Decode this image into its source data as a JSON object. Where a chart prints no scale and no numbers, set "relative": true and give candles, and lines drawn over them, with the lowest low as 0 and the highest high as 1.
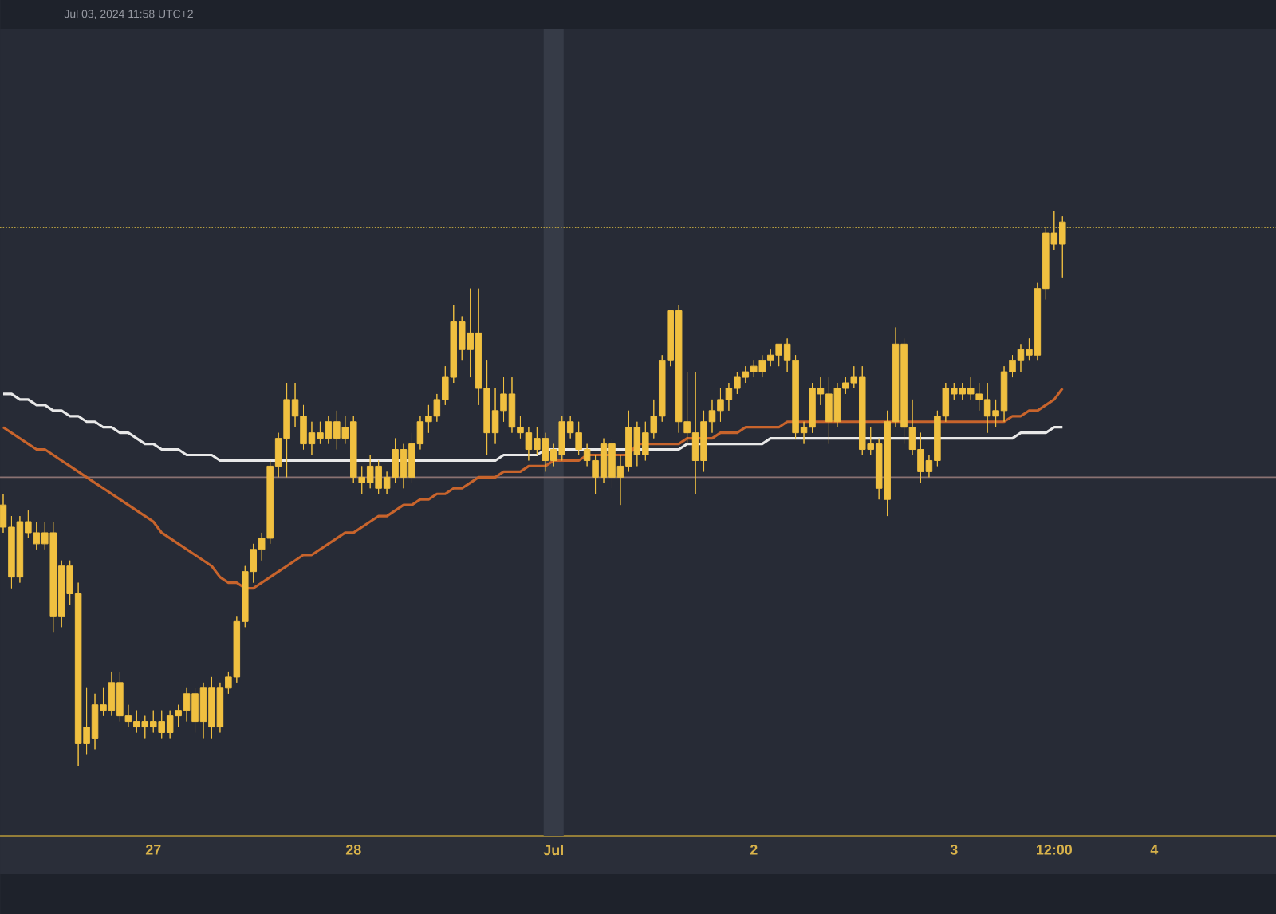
{
  "chart_data": {
    "type": "candlestick",
    "relative": true,
    "annotations": [
      "Jul 03, 2024 11:58 UTC+2"
    ],
    "categories": [
      null,
      null,
      null,
      null,
      null,
      null,
      null,
      null,
      null,
      null,
      null,
      null,
      null,
      null,
      null,
      null,
      null,
      null,
      "27",
      null,
      null,
      null,
      null,
      null,
      null,
      null,
      null,
      null,
      null,
      null,
      null,
      null,
      null,
      null,
      null,
      null,
      null,
      null,
      null,
      null,
      null,
      null,
      "28",
      null,
      null,
      null,
      null,
      null,
      null,
      null,
      null,
      null,
      null,
      null,
      null,
      null,
      null,
      null,
      null,
      null,
      null,
      null,
      null,
      null,
      null,
      null,
      "Jul",
      null,
      null,
      null,
      null,
      null,
      null,
      null,
      null,
      null,
      null,
      null,
      null,
      null,
      null,
      null,
      null,
      null,
      null,
      null,
      null,
      null,
      null,
      null,
      "2",
      null,
      null,
      null,
      null,
      null,
      null,
      null,
      null,
      null,
      null,
      null,
      null,
      null,
      null,
      null,
      null,
      null,
      null,
      null,
      null,
      null,
      null,
      null,
      "3",
      null,
      null,
      null,
      null,
      null,
      null,
      null,
      null,
      null,
      null,
      null,
      "12:00",
      null,
      null,
      null,
      null,
      null,
      null,
      null,
      null,
      null,
      null,
      null,
      "4"
    ],
    "ref_lines": [
      {
        "axis": "y",
        "value": 0.97,
        "color": "#b8a040",
        "line_style": "dotted"
      },
      {
        "axis": "y",
        "value": 0.52,
        "color": "#8a7272",
        "line_style": "solid"
      }
    ],
    "bands": [
      {
        "axis": "x",
        "from": "Jul",
        "to": "Jul",
        "color": "#363b47"
      }
    ],
    "series": [
      {
        "type": "line",
        "color": "#e8e8e8",
        "values": [
          0.67,
          0.67,
          0.66,
          0.66,
          0.65,
          0.65,
          0.64,
          0.64,
          0.63,
          0.63,
          0.62,
          0.62,
          0.61,
          0.61,
          0.6,
          0.6,
          0.59,
          0.58,
          0.58,
          0.57,
          0.57,
          0.57,
          0.56,
          0.56,
          0.56,
          0.56,
          0.55,
          0.55,
          0.55,
          0.55,
          0.55,
          0.55,
          0.55,
          0.55,
          0.55,
          0.55,
          0.55,
          0.55,
          0.55,
          0.55,
          0.55,
          0.55,
          0.55,
          0.55,
          0.55,
          0.55,
          0.55,
          0.55,
          0.55,
          0.55,
          0.55,
          0.55,
          0.55,
          0.55,
          0.55,
          0.55,
          0.55,
          0.55,
          0.55,
          0.55,
          0.56,
          0.56,
          0.56,
          0.56,
          0.56,
          0.57,
          0.57,
          0.57,
          0.57,
          0.57,
          0.57,
          0.57,
          0.57,
          0.57,
          0.57,
          0.57,
          0.57,
          0.57,
          0.57,
          0.57,
          0.57,
          0.57,
          0.58,
          0.58,
          0.58,
          0.58,
          0.58,
          0.58,
          0.58,
          0.58,
          0.58,
          0.58,
          0.59,
          0.59,
          0.59,
          0.59,
          0.59,
          0.59,
          0.59,
          0.59,
          0.59,
          0.59,
          0.59,
          0.59,
          0.59,
          0.59,
          0.59,
          0.59,
          0.59,
          0.59,
          0.59,
          0.59,
          0.59,
          0.59,
          0.59,
          0.59,
          0.59,
          0.59,
          0.59,
          0.59,
          0.59,
          0.59,
          0.6,
          0.6,
          0.6,
          0.6,
          0.61,
          0.61,
          null,
          null,
          null,
          null,
          null,
          null,
          null,
          null,
          null,
          null,
          null
        ]
      },
      {
        "type": "line",
        "color": "#c8642c",
        "values": [
          0.61,
          0.6,
          0.59,
          0.58,
          0.57,
          0.57,
          0.56,
          0.55,
          0.54,
          0.53,
          0.52,
          0.51,
          0.5,
          0.49,
          0.48,
          0.47,
          0.46,
          0.45,
          0.44,
          0.42,
          0.41,
          0.4,
          0.39,
          0.38,
          0.37,
          0.36,
          0.34,
          0.33,
          0.33,
          0.32,
          0.32,
          0.33,
          0.34,
          0.35,
          0.36,
          0.37,
          0.38,
          0.38,
          0.39,
          0.4,
          0.41,
          0.42,
          0.42,
          0.43,
          0.44,
          0.45,
          0.45,
          0.46,
          0.47,
          0.47,
          0.48,
          0.48,
          0.49,
          0.49,
          0.5,
          0.5,
          0.51,
          0.52,
          0.52,
          0.52,
          0.53,
          0.53,
          0.53,
          0.54,
          0.54,
          0.54,
          0.55,
          0.55,
          0.55,
          0.55,
          0.56,
          0.56,
          0.56,
          0.56,
          0.56,
          0.56,
          0.58,
          0.58,
          0.58,
          0.58,
          0.58,
          0.58,
          0.59,
          0.59,
          0.59,
          0.59,
          0.6,
          0.6,
          0.6,
          0.61,
          0.61,
          0.61,
          0.61,
          0.61,
          0.62,
          0.62,
          0.62,
          0.62,
          0.62,
          0.62,
          0.62,
          0.62,
          0.62,
          0.62,
          0.62,
          0.62,
          0.62,
          0.62,
          0.62,
          0.62,
          0.62,
          0.62,
          0.62,
          0.62,
          0.62,
          0.62,
          0.62,
          0.62,
          0.62,
          0.62,
          0.62,
          0.63,
          0.63,
          0.64,
          0.64,
          0.65,
          0.66,
          0.68,
          null,
          null,
          null,
          null,
          null,
          null,
          null,
          null,
          null,
          null,
          null
        ]
      },
      {
        "color": "#f0c040",
        "ohlc": [
          [
            0.47,
            0.49,
            0.42,
            0.43
          ],
          [
            0.43,
            0.45,
            0.32,
            0.34
          ],
          [
            0.34,
            0.45,
            0.33,
            0.44
          ],
          [
            0.44,
            0.46,
            0.41,
            0.42
          ],
          [
            0.42,
            0.44,
            0.39,
            0.4
          ],
          [
            0.4,
            0.44,
            0.39,
            0.42
          ],
          [
            0.42,
            0.44,
            0.24,
            0.27
          ],
          [
            0.27,
            0.37,
            0.25,
            0.36
          ],
          [
            0.36,
            0.37,
            0.29,
            0.31
          ],
          [
            0.31,
            0.33,
            0.0,
            0.04
          ],
          [
            0.04,
            0.14,
            0.02,
            0.07
          ],
          [
            0.05,
            0.13,
            0.03,
            0.11
          ],
          [
            0.11,
            0.14,
            0.09,
            0.1
          ],
          [
            0.1,
            0.17,
            0.09,
            0.15
          ],
          [
            0.15,
            0.17,
            0.08,
            0.09
          ],
          [
            0.09,
            0.11,
            0.07,
            0.08
          ],
          [
            0.08,
            0.1,
            0.06,
            0.07
          ],
          [
            0.07,
            0.09,
            0.05,
            0.08
          ],
          [
            0.08,
            0.1,
            0.06,
            0.07
          ],
          [
            0.08,
            0.1,
            0.05,
            0.06
          ],
          [
            0.06,
            0.1,
            0.05,
            0.09
          ],
          [
            0.09,
            0.11,
            0.07,
            0.1
          ],
          [
            0.1,
            0.14,
            0.08,
            0.13
          ],
          [
            0.13,
            0.14,
            0.06,
            0.08
          ],
          [
            0.08,
            0.15,
            0.05,
            0.14
          ],
          [
            0.14,
            0.16,
            0.05,
            0.07
          ],
          [
            0.07,
            0.15,
            0.06,
            0.14
          ],
          [
            0.14,
            0.17,
            0.13,
            0.16
          ],
          [
            0.16,
            0.27,
            0.15,
            0.26
          ],
          [
            0.26,
            0.36,
            0.25,
            0.35
          ],
          [
            0.35,
            0.4,
            0.33,
            0.39
          ],
          [
            0.39,
            0.42,
            0.37,
            0.41
          ],
          [
            0.41,
            0.55,
            0.4,
            0.54
          ],
          [
            0.54,
            0.6,
            0.52,
            0.59
          ],
          [
            0.59,
            0.69,
            0.52,
            0.66
          ],
          [
            0.66,
            0.69,
            0.61,
            0.63
          ],
          [
            0.63,
            0.65,
            0.57,
            0.58
          ],
          [
            0.58,
            0.62,
            0.56,
            0.6
          ],
          [
            0.6,
            0.62,
            0.58,
            0.59
          ],
          [
            0.59,
            0.63,
            0.58,
            0.62
          ],
          [
            0.62,
            0.64,
            0.57,
            0.59
          ],
          [
            0.59,
            0.63,
            0.58,
            0.61
          ],
          [
            0.62,
            0.63,
            0.51,
            0.52
          ],
          [
            0.52,
            0.54,
            0.49,
            0.51
          ],
          [
            0.51,
            0.56,
            0.5,
            0.54
          ],
          [
            0.54,
            0.55,
            0.49,
            0.5
          ],
          [
            0.5,
            0.53,
            0.49,
            0.52
          ],
          [
            0.52,
            0.59,
            0.51,
            0.57
          ],
          [
            0.57,
            0.58,
            0.5,
            0.52
          ],
          [
            0.52,
            0.6,
            0.51,
            0.58
          ],
          [
            0.58,
            0.63,
            0.57,
            0.62
          ],
          [
            0.62,
            0.65,
            0.6,
            0.63
          ],
          [
            0.63,
            0.67,
            0.62,
            0.66
          ],
          [
            0.66,
            0.72,
            0.65,
            0.7
          ],
          [
            0.7,
            0.83,
            0.69,
            0.8
          ],
          [
            0.8,
            0.81,
            0.73,
            0.75
          ],
          [
            0.75,
            0.86,
            0.7,
            0.78
          ],
          [
            0.78,
            0.86,
            0.65,
            0.68
          ],
          [
            0.68,
            0.73,
            0.56,
            0.6
          ],
          [
            0.6,
            0.68,
            0.58,
            0.64
          ],
          [
            0.64,
            0.7,
            0.62,
            0.67
          ],
          [
            0.67,
            0.7,
            0.6,
            0.61
          ],
          [
            0.61,
            0.63,
            0.59,
            0.6
          ],
          [
            0.6,
            0.61,
            0.55,
            0.57
          ],
          [
            0.57,
            0.61,
            0.56,
            0.59
          ],
          [
            0.59,
            0.6,
            0.53,
            0.55
          ],
          [
            0.55,
            0.58,
            0.54,
            0.57
          ],
          [
            0.56,
            0.63,
            0.55,
            0.62
          ],
          [
            0.62,
            0.63,
            0.59,
            0.6
          ],
          [
            0.6,
            0.62,
            0.56,
            0.57
          ],
          [
            0.57,
            0.58,
            0.54,
            0.55
          ],
          [
            0.55,
            0.56,
            0.49,
            0.52
          ],
          [
            0.52,
            0.59,
            0.51,
            0.58
          ],
          [
            0.58,
            0.59,
            0.5,
            0.52
          ],
          [
            0.52,
            0.56,
            0.47,
            0.54
          ],
          [
            0.54,
            0.64,
            0.53,
            0.61
          ],
          [
            0.61,
            0.62,
            0.54,
            0.56
          ],
          [
            0.56,
            0.62,
            0.55,
            0.6
          ],
          [
            0.6,
            0.66,
            0.59,
            0.63
          ],
          [
            0.63,
            0.74,
            0.62,
            0.73
          ],
          [
            0.73,
            0.82,
            0.72,
            0.82
          ],
          [
            0.82,
            0.83,
            0.6,
            0.62
          ],
          [
            0.62,
            0.71,
            0.58,
            0.6
          ],
          [
            0.6,
            0.71,
            0.49,
            0.55
          ],
          [
            0.55,
            0.64,
            0.53,
            0.62
          ],
          [
            0.62,
            0.66,
            0.6,
            0.64
          ],
          [
            0.64,
            0.68,
            0.62,
            0.66
          ],
          [
            0.66,
            0.69,
            0.64,
            0.68
          ],
          [
            0.68,
            0.71,
            0.67,
            0.7
          ],
          [
            0.7,
            0.72,
            0.69,
            0.71
          ],
          [
            0.71,
            0.73,
            0.7,
            0.72
          ],
          [
            0.71,
            0.74,
            0.7,
            0.73
          ],
          [
            0.73,
            0.75,
            0.72,
            0.74
          ],
          [
            0.74,
            0.76,
            0.72,
            0.76
          ],
          [
            0.76,
            0.77,
            0.71,
            0.73
          ],
          [
            0.73,
            0.74,
            0.59,
            0.6
          ],
          [
            0.6,
            0.62,
            0.58,
            0.61
          ],
          [
            0.61,
            0.69,
            0.6,
            0.68
          ],
          [
            0.68,
            0.7,
            0.65,
            0.67
          ],
          [
            0.67,
            0.7,
            0.58,
            0.62
          ],
          [
            0.62,
            0.69,
            0.61,
            0.68
          ],
          [
            0.68,
            0.7,
            0.67,
            0.69
          ],
          [
            0.69,
            0.72,
            0.68,
            0.7
          ],
          [
            0.7,
            0.72,
            0.56,
            0.57
          ],
          [
            0.57,
            0.61,
            0.56,
            0.58
          ],
          [
            0.58,
            0.59,
            0.48,
            0.5
          ],
          [
            0.48,
            0.64,
            0.45,
            0.62
          ],
          [
            0.62,
            0.79,
            0.61,
            0.76
          ],
          [
            0.76,
            0.77,
            0.58,
            0.61
          ],
          [
            0.61,
            0.66,
            0.56,
            0.57
          ],
          [
            0.57,
            0.6,
            0.51,
            0.53
          ],
          [
            0.53,
            0.56,
            0.52,
            0.55
          ],
          [
            0.55,
            0.64,
            0.54,
            0.63
          ],
          [
            0.63,
            0.69,
            0.62,
            0.68
          ],
          [
            0.68,
            0.69,
            0.66,
            0.67
          ],
          [
            0.67,
            0.69,
            0.66,
            0.68
          ],
          [
            0.68,
            0.7,
            0.66,
            0.67
          ],
          [
            0.67,
            0.69,
            0.64,
            0.66
          ],
          [
            0.66,
            0.69,
            0.6,
            0.63
          ],
          [
            0.63,
            0.66,
            0.61,
            0.64
          ],
          [
            0.64,
            0.72,
            0.62,
            0.71
          ],
          [
            0.71,
            0.74,
            0.7,
            0.73
          ],
          [
            0.73,
            0.76,
            0.71,
            0.75
          ],
          [
            0.75,
            0.77,
            0.73,
            0.74
          ],
          [
            0.74,
            0.87,
            0.73,
            0.86
          ],
          [
            0.86,
            0.97,
            0.84,
            0.96
          ],
          [
            0.96,
            1.0,
            0.93,
            0.94
          ],
          [
            0.94,
            0.99,
            0.88,
            0.98
          ],
          null,
          null,
          null,
          null,
          null,
          null,
          null,
          null,
          null,
          null,
          null
        ]
      }
    ]
  }
}
